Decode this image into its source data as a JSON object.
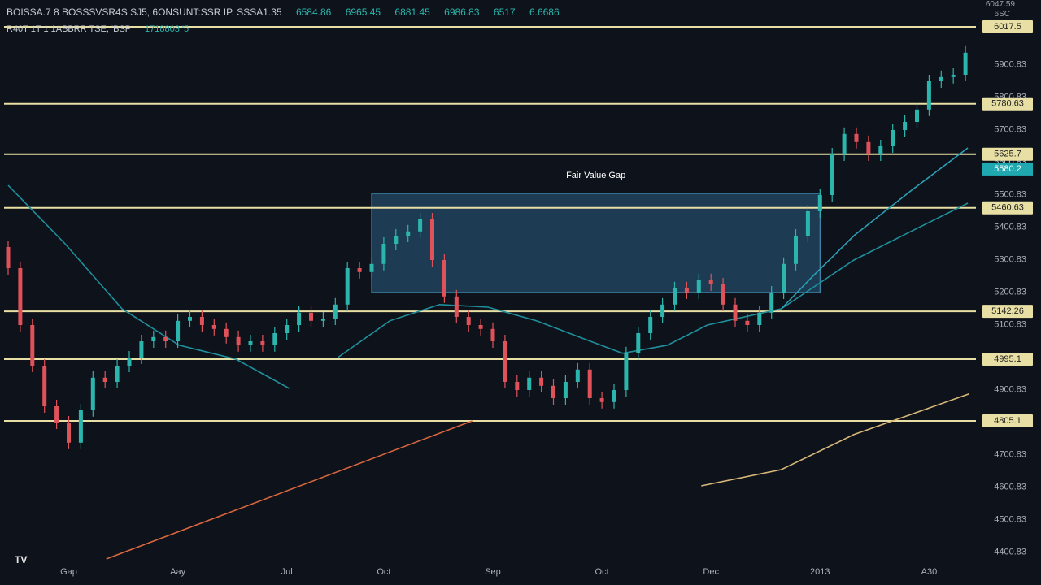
{
  "header": {
    "symbol": "BOISSA.7  8 BOSSSVSR4S SJ5, 6ONSUNT:SSR  IP. SSSA1.35",
    "quotes": [
      "6584.86",
      "6965.45",
      "6881.45",
      "6986.83",
      "6517",
      "6.6686"
    ],
    "sub": "R40T 1T 1 1ABBRR TSE, 'BSP",
    "sub_value": "1718803 '5",
    "corner": [
      "6047.59",
      "6SC"
    ],
    "logo": "TV"
  },
  "chart_data": {
    "type": "candlestick",
    "categories": [
      null,
      null,
      null,
      null,
      null,
      "Gap",
      null,
      null,
      null,
      null,
      null,
      null,
      null,
      null,
      "Aay",
      null,
      null,
      null,
      null,
      null,
      null,
      null,
      null,
      "Jul",
      null,
      null,
      null,
      null,
      null,
      null,
      null,
      "Oct",
      null,
      null,
      null,
      null,
      null,
      null,
      null,
      null,
      "Sep",
      null,
      null,
      null,
      null,
      null,
      null,
      null,
      null,
      "Oct",
      null,
      null,
      null,
      null,
      null,
      null,
      null,
      null,
      "Dec",
      null,
      null,
      null,
      null,
      null,
      null,
      null,
      null,
      "2013",
      null,
      null,
      null,
      null,
      null,
      null,
      null,
      null,
      "A30",
      null,
      null,
      null
    ],
    "open": [
      5340,
      5275,
      5100,
      4975,
      4850,
      4800,
      4738,
      4838,
      4938,
      4925,
      4975,
      5000,
      5050,
      5063,
      5050,
      5113,
      5125,
      5100,
      5088,
      5063,
      5038,
      5050,
      5038,
      5075,
      5100,
      5138,
      5113,
      5120,
      5163,
      5275,
      5263,
      5288,
      5350,
      5375,
      5388,
      5425,
      5300,
      5188,
      5125,
      5100,
      5088,
      5050,
      4925,
      4900,
      4938,
      4913,
      4875,
      4925,
      4963,
      4875,
      4863,
      4900,
      5013,
      5075,
      5125,
      5163,
      5213,
      5200,
      5238,
      5225,
      5163,
      5113,
      5100,
      5138,
      5200,
      5288,
      5375,
      5450,
      5500,
      5625,
      5688,
      5663,
      5625,
      5650,
      5700,
      5725,
      5763,
      5850,
      5863,
      5870
    ],
    "high": [
      5360,
      5295,
      5120,
      4995,
      4870,
      4820,
      4858,
      4958,
      4958,
      4995,
      5020,
      5070,
      5083,
      5083,
      5133,
      5145,
      5145,
      5120,
      5108,
      5083,
      5070,
      5070,
      5095,
      5120,
      5158,
      5158,
      5140,
      5183,
      5295,
      5295,
      5308,
      5370,
      5395,
      5408,
      5445,
      5445,
      5320,
      5208,
      5145,
      5120,
      5108,
      5070,
      4945,
      4958,
      4958,
      4933,
      4945,
      4983,
      4983,
      4895,
      4920,
      5033,
      5095,
      5145,
      5183,
      5233,
      5233,
      5258,
      5258,
      5245,
      5183,
      5133,
      5158,
      5220,
      5308,
      5395,
      5470,
      5520,
      5645,
      5708,
      5708,
      5683,
      5670,
      5720,
      5745,
      5783,
      5870,
      5883,
      5890,
      5958
    ],
    "low": [
      5255,
      5080,
      4955,
      4830,
      4780,
      4718,
      4718,
      4818,
      4905,
      4905,
      4955,
      4980,
      5030,
      5030,
      5030,
      5093,
      5080,
      5068,
      5043,
      5018,
      5018,
      5018,
      5018,
      5055,
      5080,
      5093,
      5093,
      5100,
      5143,
      5243,
      5243,
      5268,
      5330,
      5355,
      5368,
      5280,
      5168,
      5105,
      5080,
      5068,
      5030,
      4905,
      4880,
      4880,
      4893,
      4855,
      4855,
      4905,
      4855,
      4843,
      4843,
      4880,
      4993,
      5055,
      5105,
      5143,
      5180,
      5180,
      5205,
      5143,
      5093,
      5080,
      5080,
      5118,
      5180,
      5268,
      5355,
      5430,
      5480,
      5605,
      5643,
      5605,
      5605,
      5630,
      5680,
      5705,
      5743,
      5830,
      5843,
      5850
    ],
    "close": [
      5275,
      5100,
      4975,
      4850,
      4800,
      4738,
      4838,
      4938,
      4925,
      4975,
      5000,
      5050,
      5063,
      5050,
      5113,
      5125,
      5100,
      5088,
      5063,
      5038,
      5050,
      5038,
      5075,
      5100,
      5138,
      5113,
      5120,
      5163,
      5275,
      5263,
      5288,
      5350,
      5375,
      5388,
      5425,
      5300,
      5188,
      5125,
      5100,
      5088,
      5050,
      4925,
      4900,
      4938,
      4913,
      4875,
      4925,
      4963,
      4875,
      4863,
      4900,
      5013,
      5075,
      5125,
      5163,
      5213,
      5200,
      5238,
      5225,
      5163,
      5113,
      5100,
      5138,
      5200,
      5288,
      5375,
      5450,
      5500,
      5625,
      5688,
      5663,
      5625,
      5650,
      5700,
      5725,
      5763,
      5850,
      5863,
      5870,
      5938
    ],
    "up_color": "#2bb5ad",
    "down_color": "#e0525a",
    "ylim": [
      4300,
      6100
    ],
    "yticks": [
      4400.83,
      4500.83,
      4600.83,
      4700.83,
      4800.83,
      4900.83,
      5000.83,
      5100.83,
      5200.83,
      5300.83,
      5400.83,
      5500.83,
      5600.83,
      5700.83,
      5800.83,
      5900.83
    ],
    "levels": [
      6017.5,
      5780.63,
      5625.7,
      5460.63,
      5142.26,
      4995.1,
      4805.1
    ],
    "level_color": "#e8dfa4",
    "last_price": 5580.2,
    "last_price_color": "#1fa8b0",
    "lines": [
      {
        "color": "#1f8f9c",
        "x": [
          0,
          4.7,
          9.4,
          14.1,
          18.8,
          23.2
        ],
        "values": [
          5530,
          5350,
          5150,
          5038,
          4995,
          4905
        ]
      },
      {
        "color": "#1f8f9c",
        "x": [
          27.2,
          31.5,
          35.6,
          39.6,
          43.6,
          47.7,
          50.7,
          54.4,
          57.7,
          63.8,
          69.8,
          74.5,
          79.2
        ],
        "values": [
          5000,
          5113,
          5163,
          5155,
          5113,
          5055,
          5013,
          5038,
          5100,
          5150,
          5300,
          5388,
          5475
        ]
      },
      {
        "color": "#2a9fb5",
        "x": [
          63.8,
          66.4,
          69.8,
          74.5,
          79.2
        ],
        "values": [
          5150,
          5250,
          5375,
          5513,
          5645
        ]
      },
      {
        "color": "#d9663f",
        "x": [
          8.1,
          38.3
        ],
        "values": [
          4380,
          4805
        ]
      },
      {
        "color": "#d8b878",
        "x": [
          57.2,
          63.8,
          69.8,
          79.3
        ],
        "values": [
          4605,
          4655,
          4763,
          4888
        ]
      }
    ],
    "annotations": [
      {
        "text": "Fair Value Gap",
        "x": [
          30,
          67
        ],
        "y": [
          5200,
          5505
        ]
      }
    ]
  }
}
